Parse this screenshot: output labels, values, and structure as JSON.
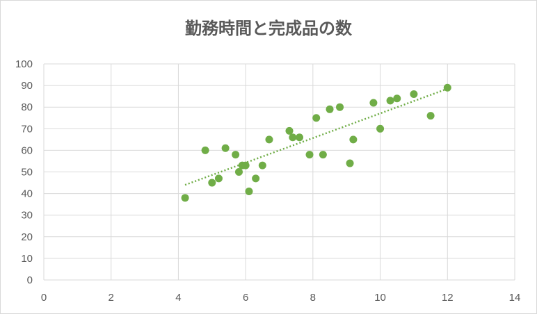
{
  "chart_data": {
    "type": "scatter",
    "title": "勤務時間と完成品の数",
    "xlabel": "",
    "ylabel": "",
    "xlim": [
      0,
      14
    ],
    "ylim": [
      0,
      100
    ],
    "xticks": [
      "0",
      "2",
      "4",
      "6",
      "8",
      "10",
      "12",
      "14"
    ],
    "yticks": [
      "0",
      "10",
      "20",
      "30",
      "40",
      "50",
      "60",
      "70",
      "80",
      "90",
      "100"
    ],
    "grid": true,
    "legend": "none",
    "color": "#70ad47",
    "trendline": {
      "type": "linear",
      "style": "dotted",
      "from": [
        4.2,
        44
      ],
      "to": [
        12,
        88.5
      ]
    },
    "series": [
      {
        "x": [
          4.2,
          4.8,
          5.0,
          5.2,
          5.4,
          5.7,
          5.8,
          5.9,
          6.0,
          6.1,
          6.3,
          6.5,
          6.7,
          7.3,
          7.4,
          7.6,
          7.9,
          8.1,
          8.3,
          8.5,
          8.8,
          9.1,
          9.2,
          9.8,
          10.0,
          10.3,
          10.5,
          11.0,
          11.5,
          12.0
        ],
        "y": [
          38,
          60,
          45,
          47,
          61,
          58,
          50,
          53,
          53,
          41,
          47,
          53,
          65,
          69,
          66,
          66,
          58,
          75,
          58,
          79,
          80,
          54,
          65,
          82,
          70,
          83,
          84,
          86,
          76,
          89
        ]
      }
    ]
  }
}
